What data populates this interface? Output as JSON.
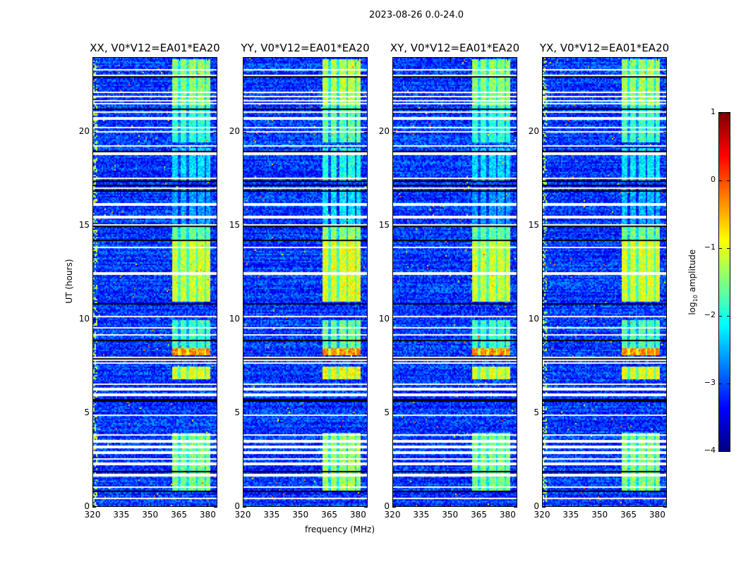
{
  "chart_data": {
    "type": "heatmap",
    "title": "2023-08-26 0.0-24.0",
    "xlabel": "frequency (MHz)",
    "ylabel": "UT (hours)",
    "xlim": [
      320,
      385
    ],
    "ylim": [
      0,
      24
    ],
    "xticks": [
      320,
      335,
      350,
      365,
      380
    ],
    "yticks": [
      0,
      5,
      10,
      15,
      20
    ],
    "panels": [
      {
        "title": "XX, V0*V12=EA01*EA20",
        "scale": 1.0,
        "lowfreq_rfi": true
      },
      {
        "title": "YY, V0*V12=EA01*EA20",
        "scale": 1.15,
        "lowfreq_rfi": false
      },
      {
        "title": "XY, V0*V12=EA01*EA20",
        "scale": 1.0,
        "lowfreq_rfi": false
      },
      {
        "title": "YX, V0*V12=EA01*EA20",
        "scale": 1.05,
        "lowfreq_rfi": true
      }
    ],
    "colorbar": {
      "label": "log10 amplitude",
      "label_main": "log",
      "label_sub": "10",
      "label_rest": " amplitude",
      "range": [
        -4,
        1
      ],
      "ticks": [
        "1",
        "0",
        "−1",
        "−2",
        "−3",
        "−4"
      ],
      "colormap": "jet"
    },
    "background_level": -3.1,
    "bright_band_mhz": [
      361,
      381
    ],
    "bright_subbands_mhz": [
      [
        361,
        364.5
      ],
      [
        365.5,
        369
      ],
      [
        370,
        373.5
      ],
      [
        374.5,
        378
      ],
      [
        379,
        381
      ]
    ],
    "bright_periods": [
      {
        "hours": [
          0.8,
          4.0
        ],
        "level": -1.5
      },
      {
        "hours": [
          5.6,
          5.8
        ],
        "level": -1.2
      },
      {
        "hours": [
          6.8,
          7.5
        ],
        "level": -1.0
      },
      {
        "hours": [
          8.1,
          8.5
        ],
        "level": -0.3
      },
      {
        "hours": [
          8.5,
          10.0
        ],
        "level": -1.8
      },
      {
        "hours": [
          11.0,
          14.2
        ],
        "level": -1.1
      },
      {
        "hours": [
          14.2,
          15.0
        ],
        "level": -1.6
      },
      {
        "hours": [
          15.0,
          17.0
        ],
        "level": -2.6
      },
      {
        "hours": [
          17.5,
          19.2
        ],
        "level": -2.3
      },
      {
        "hours": [
          19.5,
          21.5
        ],
        "level": -1.9
      },
      {
        "hours": [
          21.5,
          24.0
        ],
        "level": -1.4
      }
    ],
    "flagged_hours_white": [
      0.45,
      1.05,
      1.7,
      2.3,
      2.55,
      2.9,
      3.2,
      3.5,
      3.85,
      4.9,
      6.0,
      6.3,
      6.55,
      7.7,
      7.85,
      8.0,
      9.2,
      9.6,
      10.2,
      12.5,
      13.9,
      15.1,
      15.5,
      16.2,
      17.05,
      17.6,
      18.9,
      19.3,
      20.05,
      20.3,
      20.8,
      21.15,
      21.6,
      21.75,
      21.95,
      22.2,
      23.1,
      23.4
    ],
    "flagged_hours_black": [
      0.85,
      1.9,
      5.7,
      7.95,
      8.9,
      10.9,
      14.25,
      15.0,
      16.9,
      17.2,
      17.45,
      19.0,
      21.3,
      23.05
    ]
  }
}
